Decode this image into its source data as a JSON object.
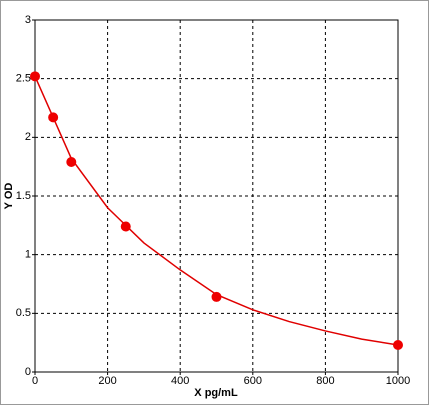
{
  "chart_data": {
    "type": "scatter",
    "xlabel": "X pg/mL",
    "ylabel": "Y OD",
    "xlim": [
      0,
      1000
    ],
    "xticks": [
      0,
      200,
      400,
      600,
      800,
      1000
    ],
    "ylim": [
      0,
      3
    ],
    "yticks": [
      0,
      0.5,
      1,
      1.5,
      2,
      2.5,
      3
    ],
    "grid": true,
    "series": [
      {
        "mode": "line",
        "color": "#e00000",
        "x": [
          0,
          100,
          200,
          300,
          400,
          500,
          600,
          700,
          800,
          900,
          1000
        ],
        "values": [
          2.52,
          1.82,
          1.4,
          1.1,
          0.87,
          0.66,
          0.53,
          0.43,
          0.35,
          0.28,
          0.23
        ]
      },
      {
        "mode": "points",
        "color": "#ee0000",
        "x": [
          0,
          50,
          100,
          250,
          500,
          1000
        ],
        "values": [
          2.52,
          2.17,
          1.79,
          1.24,
          0.64,
          0.23
        ]
      }
    ]
  }
}
